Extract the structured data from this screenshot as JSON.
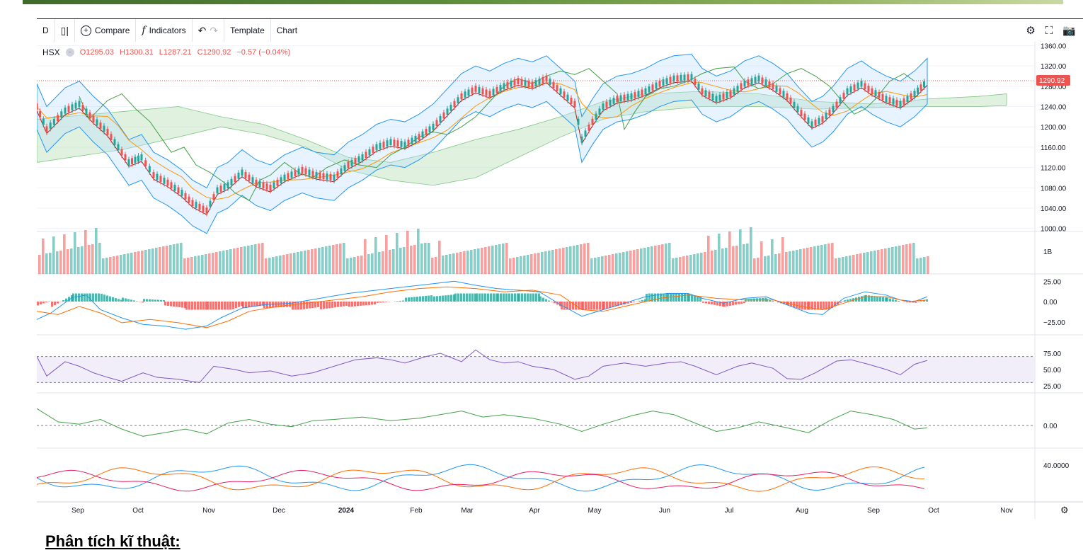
{
  "toolbar": {
    "interval": "D",
    "compare": "Compare",
    "indicators": "Indicators",
    "template": "Template",
    "chart": "Chart"
  },
  "legend": {
    "symbol": "HSX",
    "open": "O1295.03",
    "high": "H1300.31",
    "low": "L1287.21",
    "close": "C1290.92",
    "change": "−0.57 (−0.04%)"
  },
  "price_badge": "1290.92",
  "heading": "Phân tích kĩ thuật:",
  "colors": {
    "up": "#26a69a",
    "down": "#ef5350",
    "bollinger": "#2196f3",
    "cloud_green": "#a5d6a7",
    "cloud_red": "#ef9a9a",
    "rsi": "#7e57c2",
    "macd": "#2196f3",
    "signal": "#ff6d00",
    "momentum": "#43a047",
    "dmi_pink": "#e91e63"
  },
  "chart_data": {
    "type": "line",
    "symbol": "HSX",
    "x_labels": [
      "Sep",
      "Oct",
      "Nov",
      "Dec",
      "2024",
      "Feb",
      "Mar",
      "Apr",
      "May",
      "Jun",
      "Jul",
      "Aug",
      "Sep",
      "Oct",
      "Nov"
    ],
    "price_ticks": [
      "1360.00",
      "1320.00",
      "1280.00",
      "1240.00",
      "1200.00",
      "1160.00",
      "1120.00",
      "1080.00",
      "1040.00",
      "1000.00"
    ],
    "price_ylim": [
      994,
      1362
    ],
    "last_price": 1290.92,
    "volume_tick": "1B",
    "macd_ticks": [
      "25.00",
      "0.00",
      "−25.00"
    ],
    "rsi_ticks": [
      "75.00",
      "50.00",
      "25.00"
    ],
    "momentum_ticks": [
      "0.00"
    ],
    "dmi_ticks": [
      "40.0000"
    ],
    "close_path": [
      [
        0,
        1240
      ],
      [
        14,
        1195
      ],
      [
        40,
        1232
      ],
      [
        60,
        1245
      ],
      [
        80,
        1215
      ],
      [
        100,
        1190
      ],
      [
        115,
        1160
      ],
      [
        130,
        1130
      ],
      [
        148,
        1140
      ],
      [
        165,
        1105
      ],
      [
        185,
        1090
      ],
      [
        205,
        1070
      ],
      [
        220,
        1050
      ],
      [
        240,
        1035
      ],
      [
        255,
        1075
      ],
      [
        270,
        1085
      ],
      [
        290,
        1110
      ],
      [
        310,
        1090
      ],
      [
        330,
        1080
      ],
      [
        350,
        1100
      ],
      [
        375,
        1115
      ],
      [
        395,
        1105
      ],
      [
        420,
        1100
      ],
      [
        440,
        1125
      ],
      [
        460,
        1140
      ],
      [
        480,
        1160
      ],
      [
        500,
        1170
      ],
      [
        520,
        1165
      ],
      [
        540,
        1180
      ],
      [
        560,
        1200
      ],
      [
        580,
        1230
      ],
      [
        600,
        1260
      ],
      [
        620,
        1275
      ],
      [
        640,
        1265
      ],
      [
        660,
        1280
      ],
      [
        680,
        1290
      ],
      [
        700,
        1283
      ],
      [
        720,
        1295
      ],
      [
        740,
        1270
      ],
      [
        760,
        1245
      ],
      [
        770,
        1175
      ],
      [
        785,
        1210
      ],
      [
        800,
        1240
      ],
      [
        820,
        1255
      ],
      [
        840,
        1260
      ],
      [
        860,
        1270
      ],
      [
        880,
        1285
      ],
      [
        900,
        1295
      ],
      [
        925,
        1298
      ],
      [
        940,
        1270
      ],
      [
        960,
        1255
      ],
      [
        980,
        1265
      ],
      [
        1000,
        1285
      ],
      [
        1020,
        1295
      ],
      [
        1040,
        1280
      ],
      [
        1060,
        1260
      ],
      [
        1075,
        1235
      ],
      [
        1095,
        1205
      ],
      [
        1110,
        1215
      ],
      [
        1125,
        1235
      ],
      [
        1145,
        1270
      ],
      [
        1165,
        1285
      ],
      [
        1180,
        1270
      ],
      [
        1200,
        1255
      ],
      [
        1220,
        1245
      ],
      [
        1240,
        1265
      ],
      [
        1258,
        1290
      ]
    ],
    "rsi_path": [
      [
        0,
        70
      ],
      [
        14,
        40
      ],
      [
        40,
        62
      ],
      [
        60,
        55
      ],
      [
        80,
        45
      ],
      [
        100,
        38
      ],
      [
        120,
        32
      ],
      [
        150,
        45
      ],
      [
        170,
        38
      ],
      [
        200,
        35
      ],
      [
        230,
        30
      ],
      [
        250,
        55
      ],
      [
        280,
        50
      ],
      [
        300,
        45
      ],
      [
        330,
        48
      ],
      [
        360,
        40
      ],
      [
        390,
        45
      ],
      [
        420,
        55
      ],
      [
        450,
        65
      ],
      [
        480,
        68
      ],
      [
        500,
        65
      ],
      [
        520,
        60
      ],
      [
        550,
        70
      ],
      [
        570,
        75
      ],
      [
        600,
        62
      ],
      [
        620,
        80
      ],
      [
        640,
        65
      ],
      [
        660,
        60
      ],
      [
        680,
        62
      ],
      [
        700,
        55
      ],
      [
        730,
        50
      ],
      [
        760,
        35
      ],
      [
        780,
        40
      ],
      [
        800,
        55
      ],
      [
        830,
        60
      ],
      [
        860,
        55
      ],
      [
        890,
        60
      ],
      [
        910,
        62
      ],
      [
        930,
        55
      ],
      [
        960,
        42
      ],
      [
        990,
        55
      ],
      [
        1010,
        60
      ],
      [
        1040,
        52
      ],
      [
        1060,
        36
      ],
      [
        1080,
        35
      ],
      [
        1100,
        45
      ],
      [
        1130,
        63
      ],
      [
        1150,
        65
      ],
      [
        1175,
        58
      ],
      [
        1200,
        50
      ],
      [
        1220,
        42
      ],
      [
        1240,
        58
      ],
      [
        1258,
        64
      ]
    ],
    "macd_path": [
      [
        0,
        -22
      ],
      [
        20,
        -14
      ],
      [
        50,
        5
      ],
      [
        70,
        8
      ],
      [
        90,
        -10
      ],
      [
        120,
        -20
      ],
      [
        150,
        -28
      ],
      [
        180,
        -30
      ],
      [
        210,
        -34
      ],
      [
        240,
        -30
      ],
      [
        260,
        -20
      ],
      [
        290,
        -8
      ],
      [
        320,
        -4
      ],
      [
        360,
        -2
      ],
      [
        400,
        4
      ],
      [
        440,
        10
      ],
      [
        480,
        14
      ],
      [
        520,
        18
      ],
      [
        560,
        22
      ],
      [
        590,
        25
      ],
      [
        620,
        20
      ],
      [
        650,
        16
      ],
      [
        680,
        14
      ],
      [
        710,
        12
      ],
      [
        740,
        -4
      ],
      [
        770,
        -18
      ],
      [
        800,
        -10
      ],
      [
        830,
        -2
      ],
      [
        860,
        6
      ],
      [
        890,
        10
      ],
      [
        920,
        10
      ],
      [
        940,
        4
      ],
      [
        970,
        -2
      ],
      [
        1000,
        4
      ],
      [
        1030,
        6
      ],
      [
        1060,
        -4
      ],
      [
        1090,
        -14
      ],
      [
        1110,
        -16
      ],
      [
        1140,
        4
      ],
      [
        1170,
        12
      ],
      [
        1200,
        8
      ],
      [
        1220,
        2
      ],
      [
        1240,
        0
      ],
      [
        1258,
        6
      ]
    ],
    "signal_path": [
      [
        0,
        -12
      ],
      [
        30,
        -16
      ],
      [
        60,
        -6
      ],
      [
        90,
        -14
      ],
      [
        120,
        -26
      ],
      [
        160,
        -22
      ],
      [
        200,
        -26
      ],
      [
        240,
        -32
      ],
      [
        270,
        -24
      ],
      [
        300,
        -12
      ],
      [
        340,
        -6
      ],
      [
        380,
        -2
      ],
      [
        420,
        2
      ],
      [
        460,
        6
      ],
      [
        500,
        12
      ],
      [
        540,
        16
      ],
      [
        580,
        18
      ],
      [
        620,
        16
      ],
      [
        660,
        12
      ],
      [
        700,
        14
      ],
      [
        740,
        8
      ],
      [
        770,
        -10
      ],
      [
        800,
        -12
      ],
      [
        840,
        -4
      ],
      [
        880,
        4
      ],
      [
        920,
        8
      ],
      [
        960,
        4
      ],
      [
        1000,
        2
      ],
      [
        1040,
        2
      ],
      [
        1080,
        -6
      ],
      [
        1110,
        -10
      ],
      [
        1140,
        -2
      ],
      [
        1170,
        6
      ],
      [
        1200,
        6
      ],
      [
        1230,
        0
      ],
      [
        1258,
        2
      ]
    ],
    "momentum_path": [
      [
        0,
        28
      ],
      [
        30,
        6
      ],
      [
        60,
        2
      ],
      [
        90,
        10
      ],
      [
        120,
        -6
      ],
      [
        150,
        -18
      ],
      [
        180,
        -12
      ],
      [
        210,
        -6
      ],
      [
        240,
        -14
      ],
      [
        270,
        4
      ],
      [
        300,
        10
      ],
      [
        330,
        2
      ],
      [
        360,
        -2
      ],
      [
        390,
        8
      ],
      [
        420,
        10
      ],
      [
        460,
        14
      ],
      [
        500,
        8
      ],
      [
        540,
        12
      ],
      [
        570,
        18
      ],
      [
        600,
        24
      ],
      [
        630,
        14
      ],
      [
        660,
        18
      ],
      [
        700,
        12
      ],
      [
        740,
        2
      ],
      [
        770,
        -10
      ],
      [
        800,
        2
      ],
      [
        840,
        16
      ],
      [
        870,
        24
      ],
      [
        900,
        18
      ],
      [
        930,
        4
      ],
      [
        960,
        -10
      ],
      [
        990,
        -4
      ],
      [
        1020,
        6
      ],
      [
        1060,
        -4
      ],
      [
        1090,
        -12
      ],
      [
        1120,
        8
      ],
      [
        1150,
        24
      ],
      [
        1180,
        18
      ],
      [
        1210,
        10
      ],
      [
        1240,
        -6
      ],
      [
        1258,
        -4
      ]
    ]
  }
}
